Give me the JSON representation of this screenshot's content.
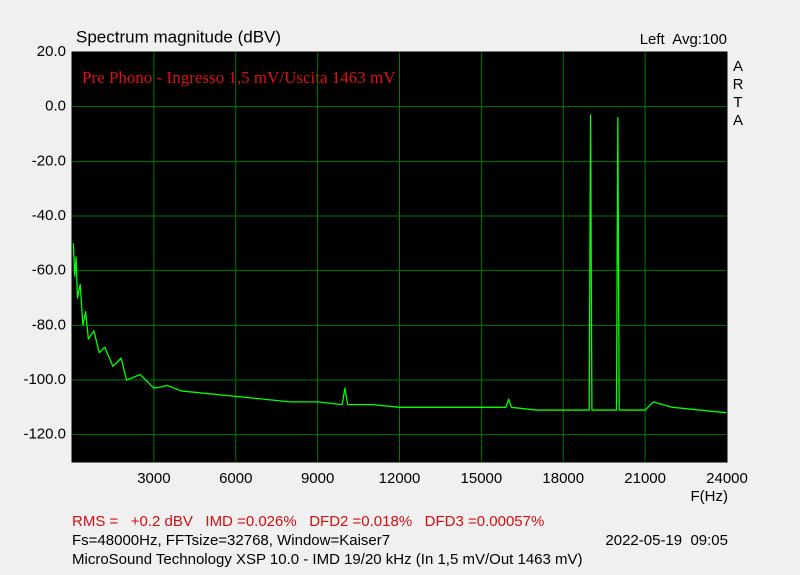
{
  "chart_data": {
    "type": "line",
    "title": "Spectrum magnitude (dBV)",
    "channel_label": "Left  Avg:100",
    "side_label": "ARTA",
    "annotation": "Pre Phono - Ingresso 1,5 mV/Uscita 1463 mV",
    "x_label": "F(Hz)",
    "x": [
      50,
      100,
      150,
      200,
      300,
      400,
      500,
      600,
      800,
      1000,
      1200,
      1500,
      1800,
      2000,
      2500,
      3000,
      3500,
      4000,
      5000,
      6000,
      7000,
      8000,
      9000,
      9900,
      10000,
      10100,
      11000,
      12000,
      13000,
      14000,
      15000,
      15900,
      16000,
      16100,
      17000,
      18000,
      18950,
      19000,
      19050,
      19950,
      20000,
      20050,
      21000,
      21300,
      22000,
      23000,
      24000
    ],
    "series": [
      {
        "name": "Left",
        "color": "#00ff00",
        "values": [
          -50,
          -62,
          -55,
          -70,
          -65,
          -80,
          -75,
          -85,
          -82,
          -90,
          -88,
          -95,
          -92,
          -100,
          -98,
          -103,
          -102,
          -104,
          -105,
          -106,
          -107,
          -108,
          -108,
          -109,
          -103,
          -109,
          -109,
          -110,
          -110,
          -110,
          -110,
          -110,
          -107,
          -110,
          -111,
          -111,
          -111,
          -3,
          -111,
          -111,
          -4,
          -111,
          -111,
          -108,
          -110,
          -111,
          -112
        ]
      }
    ],
    "xlim": [
      0,
      24000
    ],
    "xticks": [
      3000,
      6000,
      9000,
      12000,
      15000,
      18000,
      21000,
      24000
    ],
    "ylim": [
      -130,
      20
    ],
    "yticks": [
      {
        "value": 20,
        "label": "20.0"
      },
      {
        "value": 0,
        "label": "0.0"
      },
      {
        "value": -20,
        "label": "-20.0"
      },
      {
        "value": -40,
        "label": "-40.0"
      },
      {
        "value": -60,
        "label": "-60.0"
      },
      {
        "value": -80,
        "label": "-80.0"
      },
      {
        "value": -100,
        "label": "-100.0"
      },
      {
        "value": -120,
        "label": "-120.0"
      }
    ],
    "grid": true,
    "footer": {
      "measurements": "RMS =   +0.2 dBV   IMD =0.026%   DFD2 =0.018%   DFD3 =0.00057%",
      "settings": "Fs=48000Hz, FFTsize=32768, Window=Kaiser7",
      "timestamp": "2022-05-19  09:05",
      "device": "MicroSound Technology XSP 10.0 - IMD 19/20 kHz (In 1,5 mV/Out 1463 mV)"
    }
  }
}
